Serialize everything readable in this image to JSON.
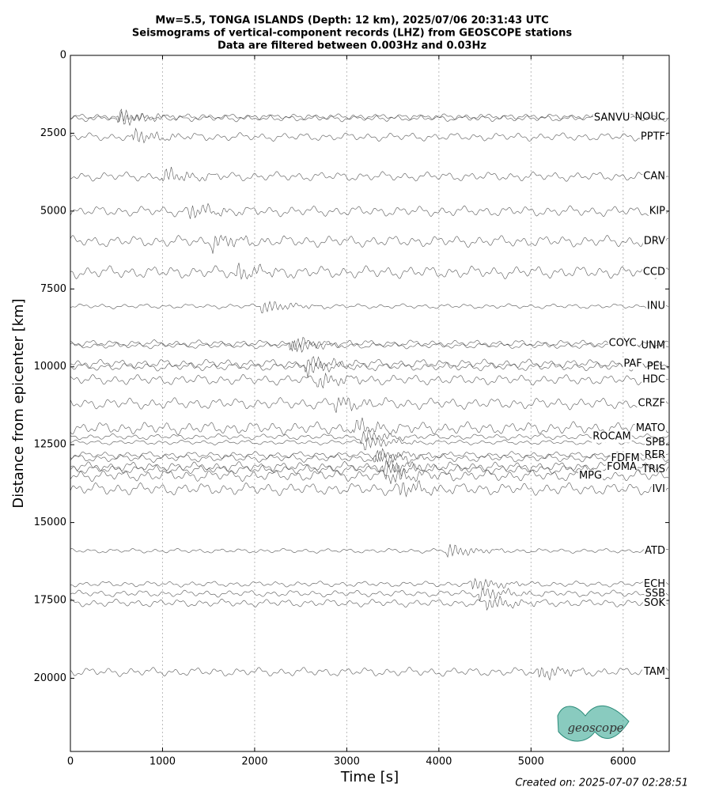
{
  "chart_data": {
    "type": "record-section",
    "title": [
      "Mw=5.5, TONGA ISLANDS (Depth: 12 km), 2025/07/06 20:31:43 UTC",
      "Seismograms of vertical-component records (LHZ) from GEOSCOPE stations",
      "Data are filtered between 0.003Hz and 0.03Hz"
    ],
    "xlabel": "Time [s]",
    "ylabel": "Distance from epicenter [km]",
    "xlim": [
      0,
      6500
    ],
    "ylim": [
      0,
      22350
    ],
    "xticks": [
      0,
      1000,
      2000,
      3000,
      4000,
      5000,
      6000
    ],
    "yticks": [
      0,
      2500,
      5000,
      7500,
      10000,
      12500,
      15000,
      17500,
      20000
    ],
    "grid": "x",
    "color": "#555555",
    "series": [
      {
        "name": "NOUC",
        "distance": 1980
      },
      {
        "name": "SANVU",
        "distance": 2010
      },
      {
        "name": "PPTF",
        "distance": 2618
      },
      {
        "name": "CAN",
        "distance": 3888
      },
      {
        "name": "KIP",
        "distance": 5006
      },
      {
        "name": "DRV",
        "distance": 5972
      },
      {
        "name": "CCD",
        "distance": 6963
      },
      {
        "name": "INU",
        "distance": 8056
      },
      {
        "name": "UNM",
        "distance": 9320
      },
      {
        "name": "COYC",
        "distance": 9250
      },
      {
        "name": "PEL",
        "distance": 10000
      },
      {
        "name": "PAF",
        "distance": 9900
      },
      {
        "name": "HDC",
        "distance": 10419
      },
      {
        "name": "CRZF",
        "distance": 11181
      },
      {
        "name": "MATO",
        "distance": 11970
      },
      {
        "name": "SPB",
        "distance": 12427
      },
      {
        "name": "ROCAM",
        "distance": 12248
      },
      {
        "name": "RER",
        "distance": 12833
      },
      {
        "name": "FDFM",
        "distance": 12935
      },
      {
        "name": "TRIS",
        "distance": 13291
      },
      {
        "name": "FOMA",
        "distance": 13214
      },
      {
        "name": "MPG",
        "distance": 13494
      },
      {
        "name": "IVI",
        "distance": 13926
      },
      {
        "name": "ATD",
        "distance": 15909
      },
      {
        "name": "ECH",
        "distance": 16976
      },
      {
        "name": "SSB",
        "distance": 17281
      },
      {
        "name": "SOK",
        "distance": 17586
      },
      {
        "name": "TAM",
        "distance": 19797
      }
    ],
    "logo": "geoscope",
    "footer": "Created on: 2025-07-07 02:28:51"
  }
}
